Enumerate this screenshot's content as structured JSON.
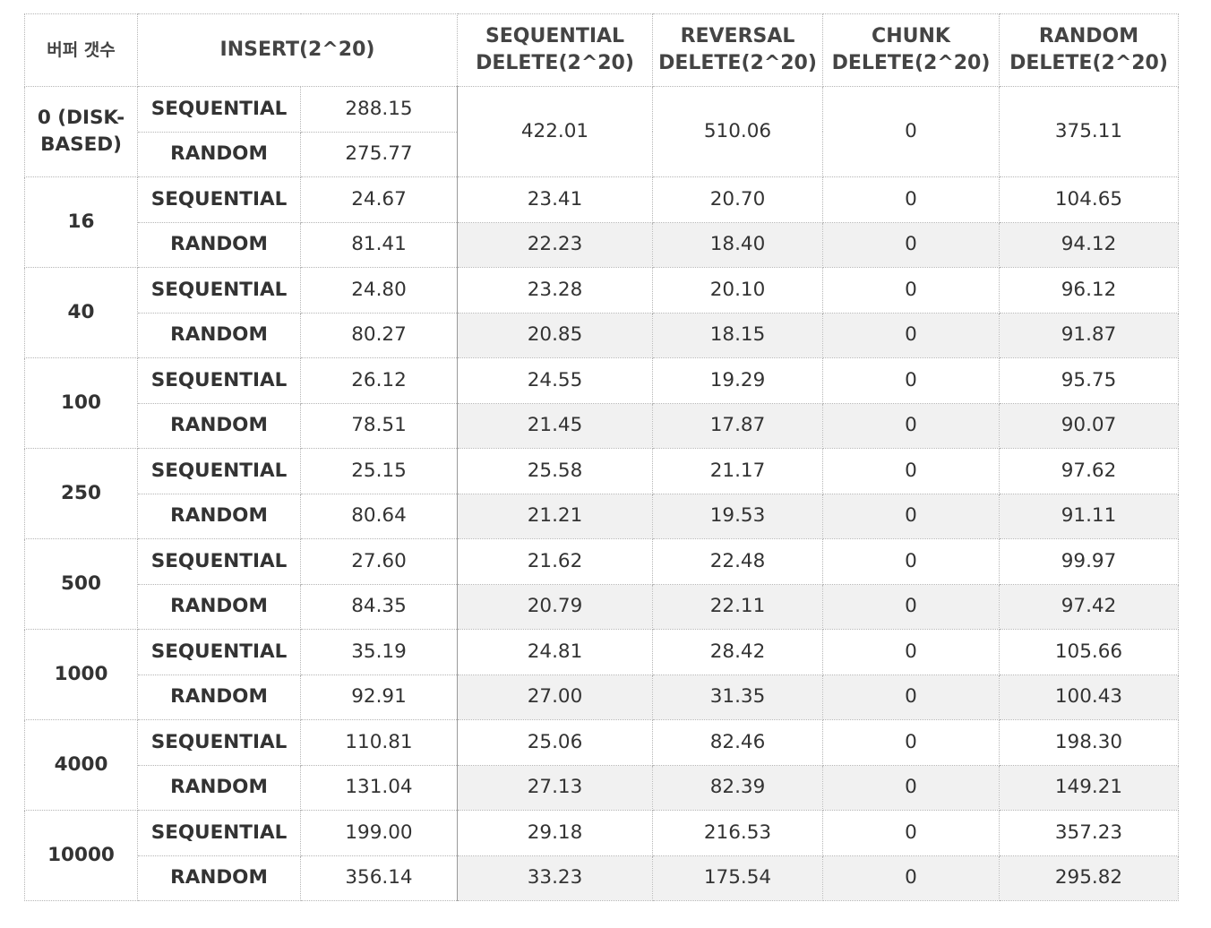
{
  "header": {
    "buffer_count": "버퍼 갯수",
    "insert": "INSERT(2^20)",
    "sequential_delete": [
      "SEQUENTIAL",
      "DELETE(2^20)"
    ],
    "reversal_delete": [
      "REVERSAL",
      "DELETE(2^20)"
    ],
    "chunk_delete": [
      "CHUNK",
      "DELETE(2^20)"
    ],
    "random_delete": [
      "RANDOM",
      "DELETE(2^20)"
    ]
  },
  "groups": [
    {
      "buffer": [
        "0 (DISK-",
        "BASED)"
      ],
      "rows": [
        {
          "mode": "SEQUENTIAL",
          "insert": "288.15"
        },
        {
          "mode": "RANDOM",
          "insert": "275.77"
        }
      ],
      "shared": {
        "seq_del": "422.01",
        "rev_del": "510.06",
        "chunk_del": "0",
        "rand_del": "375.11"
      }
    },
    {
      "buffer": "16",
      "rows": [
        {
          "mode": "SEQUENTIAL",
          "insert": "24.67",
          "seq_del": "23.41",
          "rev_del": "20.70",
          "chunk_del": "0",
          "rand_del": "104.65"
        },
        {
          "mode": "RANDOM",
          "insert": "81.41",
          "seq_del": "22.23",
          "rev_del": "18.40",
          "chunk_del": "0",
          "rand_del": "94.12"
        }
      ]
    },
    {
      "buffer": "40",
      "rows": [
        {
          "mode": "SEQUENTIAL",
          "insert": "24.80",
          "seq_del": "23.28",
          "rev_del": "20.10",
          "chunk_del": "0",
          "rand_del": "96.12"
        },
        {
          "mode": "RANDOM",
          "insert": "80.27",
          "seq_del": "20.85",
          "rev_del": "18.15",
          "chunk_del": "0",
          "rand_del": "91.87"
        }
      ]
    },
    {
      "buffer": "100",
      "rows": [
        {
          "mode": "SEQUENTIAL",
          "insert": "26.12",
          "seq_del": "24.55",
          "rev_del": "19.29",
          "chunk_del": "0",
          "rand_del": "95.75"
        },
        {
          "mode": "RANDOM",
          "insert": "78.51",
          "seq_del": "21.45",
          "rev_del": "17.87",
          "chunk_del": "0",
          "rand_del": "90.07"
        }
      ]
    },
    {
      "buffer": "250",
      "rows": [
        {
          "mode": "SEQUENTIAL",
          "insert": "25.15",
          "seq_del": "25.58",
          "rev_del": "21.17",
          "chunk_del": "0",
          "rand_del": "97.62"
        },
        {
          "mode": "RANDOM",
          "insert": "80.64",
          "seq_del": "21.21",
          "rev_del": "19.53",
          "chunk_del": "0",
          "rand_del": "91.11"
        }
      ]
    },
    {
      "buffer": "500",
      "rows": [
        {
          "mode": "SEQUENTIAL",
          "insert": "27.60",
          "seq_del": "21.62",
          "rev_del": "22.48",
          "chunk_del": "0",
          "rand_del": "99.97"
        },
        {
          "mode": "RANDOM",
          "insert": "84.35",
          "seq_del": "20.79",
          "rev_del": "22.11",
          "chunk_del": "0",
          "rand_del": "97.42"
        }
      ]
    },
    {
      "buffer": "1000",
      "rows": [
        {
          "mode": "SEQUENTIAL",
          "insert": "35.19",
          "seq_del": "24.81",
          "rev_del": "28.42",
          "chunk_del": "0",
          "rand_del": "105.66"
        },
        {
          "mode": "RANDOM",
          "insert": "92.91",
          "seq_del": "27.00",
          "rev_del": "31.35",
          "chunk_del": "0",
          "rand_del": "100.43"
        }
      ]
    },
    {
      "buffer": "4000",
      "rows": [
        {
          "mode": "SEQUENTIAL",
          "insert": "110.81",
          "seq_del": "25.06",
          "rev_del": "82.46",
          "chunk_del": "0",
          "rand_del": "198.30"
        },
        {
          "mode": "RANDOM",
          "insert": "131.04",
          "seq_del": "27.13",
          "rev_del": "82.39",
          "chunk_del": "0",
          "rand_del": "149.21"
        }
      ]
    },
    {
      "buffer": "10000",
      "rows": [
        {
          "mode": "SEQUENTIAL",
          "insert": "199.00",
          "seq_del": "29.18",
          "rev_del": "216.53",
          "chunk_del": "0",
          "rand_del": "357.23"
        },
        {
          "mode": "RANDOM",
          "insert": "356.14",
          "seq_del": "33.23",
          "rev_del": "175.54",
          "chunk_del": "0",
          "rand_del": "295.82"
        }
      ]
    }
  ]
}
